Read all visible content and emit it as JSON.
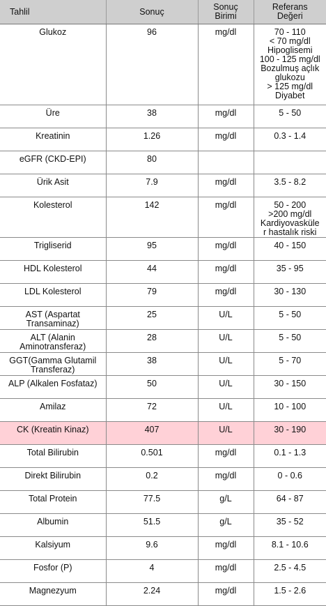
{
  "headers": {
    "test": "Tahlil",
    "result": "Sonuç",
    "unit": "Sonuç\nBirimi",
    "reference": "Referans\nDeğeri"
  },
  "rows": [
    {
      "test": "Glukoz",
      "result": "96",
      "unit": "mg/dl",
      "reference": "70 - 110\n< 70 mg/dl\nHipoglisemi\n100 - 125 mg/dl\nBozulmuş açlık\nglukozu\n> 125 mg/dl\nDiyabet"
    },
    {
      "test": "Üre",
      "result": "38",
      "unit": "mg/dl",
      "reference": "5 - 50"
    },
    {
      "test": "Kreatinin",
      "result": "1.26",
      "unit": "mg/dl",
      "reference": "0.3 - 1.4"
    },
    {
      "test": "eGFR (CKD-EPI)",
      "result": "80",
      "unit": "",
      "reference": ""
    },
    {
      "test": "Ürik Asit",
      "result": "7.9",
      "unit": "mg/dl",
      "reference": "3.5 - 8.2"
    },
    {
      "test": "Kolesterol",
      "result": "142",
      "unit": "mg/dl",
      "reference": "50 - 200\n>200 mg/dl\nKardiyovasküle\nr hastalık riski"
    },
    {
      "test": "Trigliserid",
      "result": "95",
      "unit": "mg/dl",
      "reference": "40 - 150"
    },
    {
      "test": "HDL Kolesterol",
      "result": "44",
      "unit": "mg/dl",
      "reference": "35 - 95"
    },
    {
      "test": "LDL Kolesterol",
      "result": "79",
      "unit": "mg/dl",
      "reference": "30 - 130"
    },
    {
      "test": "AST (Aspartat\nTransaminaz)",
      "result": "25",
      "unit": "U/L",
      "reference": "5 - 50"
    },
    {
      "test": "ALT (Alanin\nAminotransferaz)",
      "result": "28",
      "unit": "U/L",
      "reference": "5 - 50"
    },
    {
      "test": "GGT(Gamma Glutamil\nTransferaz)",
      "result": "38",
      "unit": "U/L",
      "reference": "5 - 70"
    },
    {
      "test": "ALP (Alkalen Fosfataz)",
      "result": "50",
      "unit": "U/L",
      "reference": "30 - 150"
    },
    {
      "test": "Amilaz",
      "result": "72",
      "unit": "U/L",
      "reference": "10 - 100"
    },
    {
      "test": "CK (Kreatin Kinaz)",
      "result": "407",
      "unit": "U/L",
      "reference": "30 - 190",
      "highlight": true
    },
    {
      "test": "Total Bilirubin",
      "result": "0.501",
      "unit": "mg/dl",
      "reference": "0.1 - 1.3"
    },
    {
      "test": "Direkt Bilirubin",
      "result": "0.2",
      "unit": "mg/dl",
      "reference": "0 - 0.6"
    },
    {
      "test": "Total Protein",
      "result": "77.5",
      "unit": "g/L",
      "reference": "64 - 87"
    },
    {
      "test": "Albumin",
      "result": "51.5",
      "unit": "g/L",
      "reference": "35 - 52"
    },
    {
      "test": "Kalsiyum",
      "result": "9.6",
      "unit": "mg/dl",
      "reference": "8.1 - 10.6"
    },
    {
      "test": "Fosfor (P)",
      "result": "4",
      "unit": "mg/dl",
      "reference": "2.5 - 4.5"
    },
    {
      "test": "Magnezyum",
      "result": "2.24",
      "unit": "mg/dl",
      "reference": "1.5 - 2.6"
    }
  ],
  "colors": {
    "header_background": "#cfcfcf",
    "highlight_background": "#ffd1d7"
  }
}
